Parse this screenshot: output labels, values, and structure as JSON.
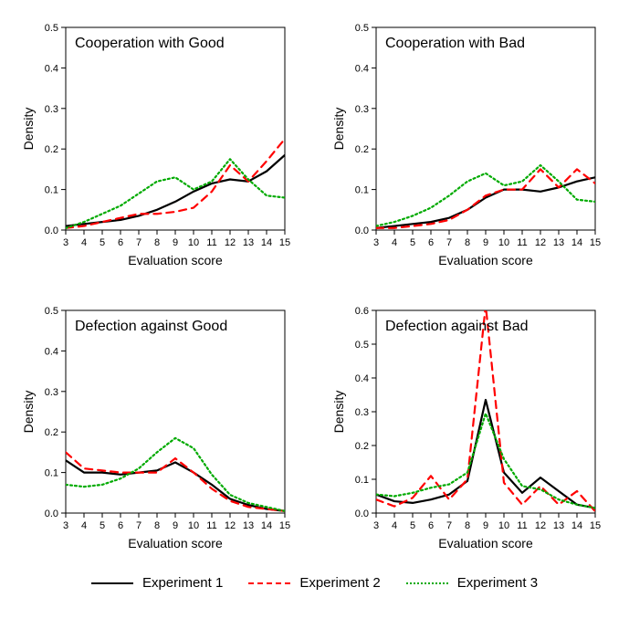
{
  "layout": {
    "rows": 2,
    "cols": 2,
    "gap_x": 30,
    "gap_y": 20,
    "padding": 20,
    "panel_title_fontsize": 16,
    "axis_label_fontsize": 14,
    "tick_fontsize": 11
  },
  "axes": {
    "xlabel": "Evaluation score",
    "ylabel": "Density",
    "xlim": [
      3,
      15
    ],
    "xtick_step": 1,
    "xtick_labels": [
      "3",
      "4",
      "5",
      "6",
      "7",
      "8",
      "9",
      "10",
      "11",
      "12",
      "13",
      "14",
      "15"
    ],
    "grid": false,
    "background_color": "#ffffff",
    "axis_color": "#000000",
    "tick_color": "#000000",
    "line_width": 2
  },
  "series_meta": {
    "exp1": {
      "color": "#000000",
      "dash": "solid",
      "width": 2.2,
      "label": "Experiment 1"
    },
    "exp2": {
      "color": "#ff0000",
      "dash": "8,6",
      "width": 2.2,
      "label": "Experiment 2"
    },
    "exp3": {
      "color": "#00aa00",
      "dash": "2,3",
      "width": 2.2,
      "label": "Experiment 3"
    }
  },
  "panels": [
    {
      "title": "Cooperation with Good",
      "ylim": [
        0.0,
        0.5
      ],
      "ytick_step": 0.1,
      "series": {
        "exp1": {
          "x": [
            3,
            4,
            5,
            6,
            7,
            8,
            9,
            10,
            11,
            12,
            13,
            14,
            15
          ],
          "y": [
            0.01,
            0.015,
            0.02,
            0.025,
            0.035,
            0.05,
            0.07,
            0.095,
            0.115,
            0.125,
            0.12,
            0.145,
            0.185
          ]
        },
        "exp2": {
          "x": [
            3,
            4,
            5,
            6,
            7,
            8,
            9,
            10,
            11,
            12,
            13,
            14,
            15
          ],
          "y": [
            0.005,
            0.01,
            0.02,
            0.03,
            0.04,
            0.04,
            0.045,
            0.055,
            0.095,
            0.16,
            0.12,
            0.17,
            0.225
          ]
        },
        "exp3": {
          "x": [
            3,
            4,
            5,
            6,
            7,
            8,
            9,
            10,
            11,
            12,
            13,
            14,
            15
          ],
          "y": [
            0.005,
            0.02,
            0.04,
            0.06,
            0.09,
            0.12,
            0.13,
            0.1,
            0.12,
            0.175,
            0.125,
            0.085,
            0.08
          ]
        }
      }
    },
    {
      "title": "Cooperation with Bad",
      "ylim": [
        0.0,
        0.5
      ],
      "ytick_step": 0.1,
      "series": {
        "exp1": {
          "x": [
            3,
            4,
            5,
            6,
            7,
            8,
            9,
            10,
            11,
            12,
            13,
            14,
            15
          ],
          "y": [
            0.005,
            0.01,
            0.015,
            0.02,
            0.03,
            0.05,
            0.08,
            0.1,
            0.1,
            0.095,
            0.105,
            0.12,
            0.13
          ]
        },
        "exp2": {
          "x": [
            3,
            4,
            5,
            6,
            7,
            8,
            9,
            10,
            11,
            12,
            13,
            14,
            15
          ],
          "y": [
            0.005,
            0.005,
            0.01,
            0.015,
            0.025,
            0.05,
            0.085,
            0.1,
            0.1,
            0.15,
            0.105,
            0.15,
            0.115
          ]
        },
        "exp3": {
          "x": [
            3,
            4,
            5,
            6,
            7,
            8,
            9,
            10,
            11,
            12,
            13,
            14,
            15
          ],
          "y": [
            0.01,
            0.02,
            0.035,
            0.055,
            0.085,
            0.12,
            0.14,
            0.11,
            0.12,
            0.16,
            0.12,
            0.075,
            0.07
          ]
        }
      }
    },
    {
      "title": "Defection against Good",
      "ylim": [
        0.0,
        0.5
      ],
      "ytick_step": 0.1,
      "series": {
        "exp1": {
          "x": [
            3,
            4,
            5,
            6,
            7,
            8,
            9,
            10,
            11,
            12,
            13,
            14,
            15
          ],
          "y": [
            0.13,
            0.1,
            0.1,
            0.095,
            0.1,
            0.105,
            0.125,
            0.1,
            0.07,
            0.035,
            0.02,
            0.01,
            0.005
          ]
        },
        "exp2": {
          "x": [
            3,
            4,
            5,
            6,
            7,
            8,
            9,
            10,
            11,
            12,
            13,
            14,
            15
          ],
          "y": [
            0.15,
            0.11,
            0.105,
            0.1,
            0.1,
            0.1,
            0.135,
            0.1,
            0.06,
            0.03,
            0.015,
            0.01,
            0.005
          ]
        },
        "exp3": {
          "x": [
            3,
            4,
            5,
            6,
            7,
            8,
            9,
            10,
            11,
            12,
            13,
            14,
            15
          ],
          "y": [
            0.07,
            0.065,
            0.07,
            0.085,
            0.11,
            0.15,
            0.185,
            0.16,
            0.095,
            0.045,
            0.025,
            0.015,
            0.005
          ]
        }
      }
    },
    {
      "title": "Defection against Bad",
      "ylim": [
        0.0,
        0.6
      ],
      "ytick_step": 0.1,
      "series": {
        "exp1": {
          "x": [
            3,
            4,
            5,
            6,
            7,
            8,
            9,
            10,
            11,
            12,
            13,
            14,
            15
          ],
          "y": [
            0.055,
            0.035,
            0.03,
            0.04,
            0.055,
            0.095,
            0.335,
            0.12,
            0.06,
            0.105,
            0.065,
            0.025,
            0.015
          ]
        },
        "exp2": {
          "x": [
            3,
            4,
            5,
            6,
            7,
            8,
            9,
            10,
            11,
            12,
            13,
            14,
            15
          ],
          "y": [
            0.04,
            0.02,
            0.045,
            0.11,
            0.04,
            0.1,
            0.615,
            0.09,
            0.025,
            0.08,
            0.025,
            0.065,
            0.005
          ]
        },
        "exp3": {
          "x": [
            3,
            4,
            5,
            6,
            7,
            8,
            9,
            10,
            11,
            12,
            13,
            14,
            15
          ],
          "y": [
            0.055,
            0.05,
            0.06,
            0.075,
            0.085,
            0.12,
            0.295,
            0.16,
            0.08,
            0.07,
            0.04,
            0.025,
            0.015
          ]
        }
      }
    }
  ],
  "legend": {
    "items": [
      {
        "key": "exp1",
        "label": "Experiment 1"
      },
      {
        "key": "exp2",
        "label": "Experiment 2"
      },
      {
        "key": "exp3",
        "label": "Experiment 3"
      }
    ],
    "fontsize": 15
  }
}
